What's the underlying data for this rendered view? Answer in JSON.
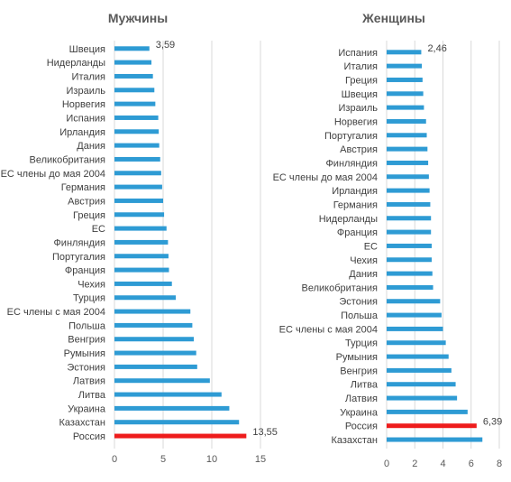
{
  "chart_data": [
    {
      "type": "bar",
      "orientation": "horizontal",
      "title": "Мужчины",
      "categories": [
        "Швеция",
        "Нидерланды",
        "Италия",
        "Израиль",
        "Норвегия",
        "Испания",
        "Ирландия",
        "Дания",
        "Великобритания",
        "ЕС члены до мая 2004",
        "Германия",
        "Австрия",
        "Греция",
        "ЕС",
        "Финляндия",
        "Португалия",
        "Франция",
        "Чехия",
        "Турция",
        "ЕС члены с мая 2004",
        "Польша",
        "Венгрия",
        "Румыния",
        "Эстония",
        "Латвия",
        "Литва",
        "Украина",
        "Казахстан",
        "Россия"
      ],
      "values": [
        3.59,
        3.8,
        3.95,
        4.1,
        4.2,
        4.5,
        4.55,
        4.6,
        4.7,
        4.8,
        4.9,
        5.0,
        5.1,
        5.35,
        5.5,
        5.55,
        5.6,
        5.9,
        6.3,
        7.8,
        8.0,
        8.15,
        8.4,
        8.5,
        9.8,
        11.0,
        11.8,
        12.8,
        13.55
      ],
      "data_labels": [
        {
          "category": "Швеция",
          "text": "3,59"
        },
        {
          "category": "Россия",
          "text": "13,55"
        }
      ],
      "highlight": "Россия",
      "xlim": [
        0,
        15
      ],
      "ticks": [
        "0",
        "5",
        "10",
        "15"
      ],
      "tick_values": [
        0,
        5,
        10,
        15
      ],
      "grid": true,
      "bar_color": "#2e9bd4",
      "highlight_color": "#ee1c1c"
    },
    {
      "type": "bar",
      "orientation": "horizontal",
      "title": "Женщины",
      "categories": [
        "Испания",
        "Италия",
        "Греция",
        "Швеция",
        "Израиль",
        "Норвегия",
        "Португалия",
        "Австрия",
        "Финляндия",
        "ЕС члены до мая 2004",
        "Ирландия",
        "Германия",
        "Нидерланды",
        "Франция",
        "ЕС",
        "Чехия",
        "Дания",
        "Великобритания",
        "Эстония",
        "Польша",
        "ЕС члены с мая 2004",
        "Турция",
        "Румыния",
        "Венгрия",
        "Литва",
        "Латвия",
        "Украина",
        "Россия",
        "Казахстан"
      ],
      "values": [
        2.46,
        2.5,
        2.55,
        2.6,
        2.65,
        2.8,
        2.85,
        2.9,
        2.95,
        3.0,
        3.05,
        3.1,
        3.15,
        3.15,
        3.2,
        3.2,
        3.25,
        3.3,
        3.8,
        3.9,
        4.0,
        4.2,
        4.4,
        4.6,
        4.9,
        5.0,
        5.75,
        6.39,
        6.8
      ],
      "data_labels": [
        {
          "category": "Испания",
          "text": "2,46"
        },
        {
          "category": "Россия",
          "text": "6,39"
        }
      ],
      "highlight": "Россия",
      "xlim": [
        0,
        8
      ],
      "ticks": [
        "0",
        "2",
        "4",
        "6",
        "8"
      ],
      "tick_values": [
        0,
        2,
        4,
        6,
        8
      ],
      "grid": true,
      "bar_color": "#2e9bd4",
      "highlight_color": "#ee1c1c"
    }
  ]
}
